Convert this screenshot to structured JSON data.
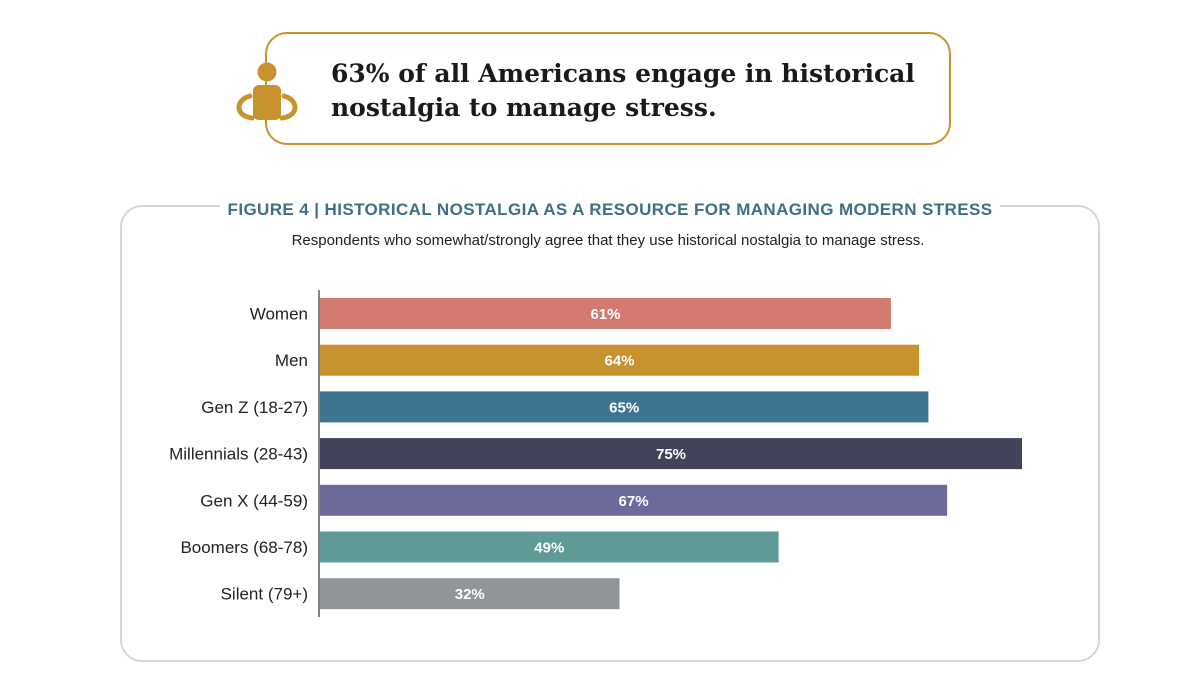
{
  "callout": {
    "text": "63% of all Americans engage in historical nostalgia to manage stress.",
    "icon": "person-icon",
    "accent_color": "#c8922f"
  },
  "figure": {
    "title": "FIGURE 4  |  HISTORICAL NOSTALGIA AS A RESOURCE FOR MANAGING MODERN STRESS",
    "subtitle": "Respondents who somewhat/strongly agree that they use historical nostalgia to manage stress.",
    "title_color": "#3d6f86"
  },
  "chart_data": {
    "type": "bar",
    "orientation": "horizontal",
    "categories": [
      "Women",
      "Men",
      "Gen Z (18-27)",
      "Millennials (28-43)",
      "Gen X (44-59)",
      "Boomers (68-78)",
      "Silent (79+)"
    ],
    "values": [
      61,
      64,
      65,
      75,
      67,
      49,
      32
    ],
    "value_labels": [
      "61%",
      "64%",
      "65%",
      "75%",
      "67%",
      "49%",
      "32%"
    ],
    "colors": [
      "#d27a70",
      "#c8922f",
      "#3d7490",
      "#42435a",
      "#6c6a9a",
      "#5f9a97",
      "#929598"
    ],
    "unit": "%",
    "xlim": [
      0,
      75
    ],
    "title": "HISTORICAL NOSTALGIA AS A RESOURCE FOR MANAGING MODERN STRESS",
    "xlabel": "",
    "ylabel": "",
    "grid": false
  }
}
